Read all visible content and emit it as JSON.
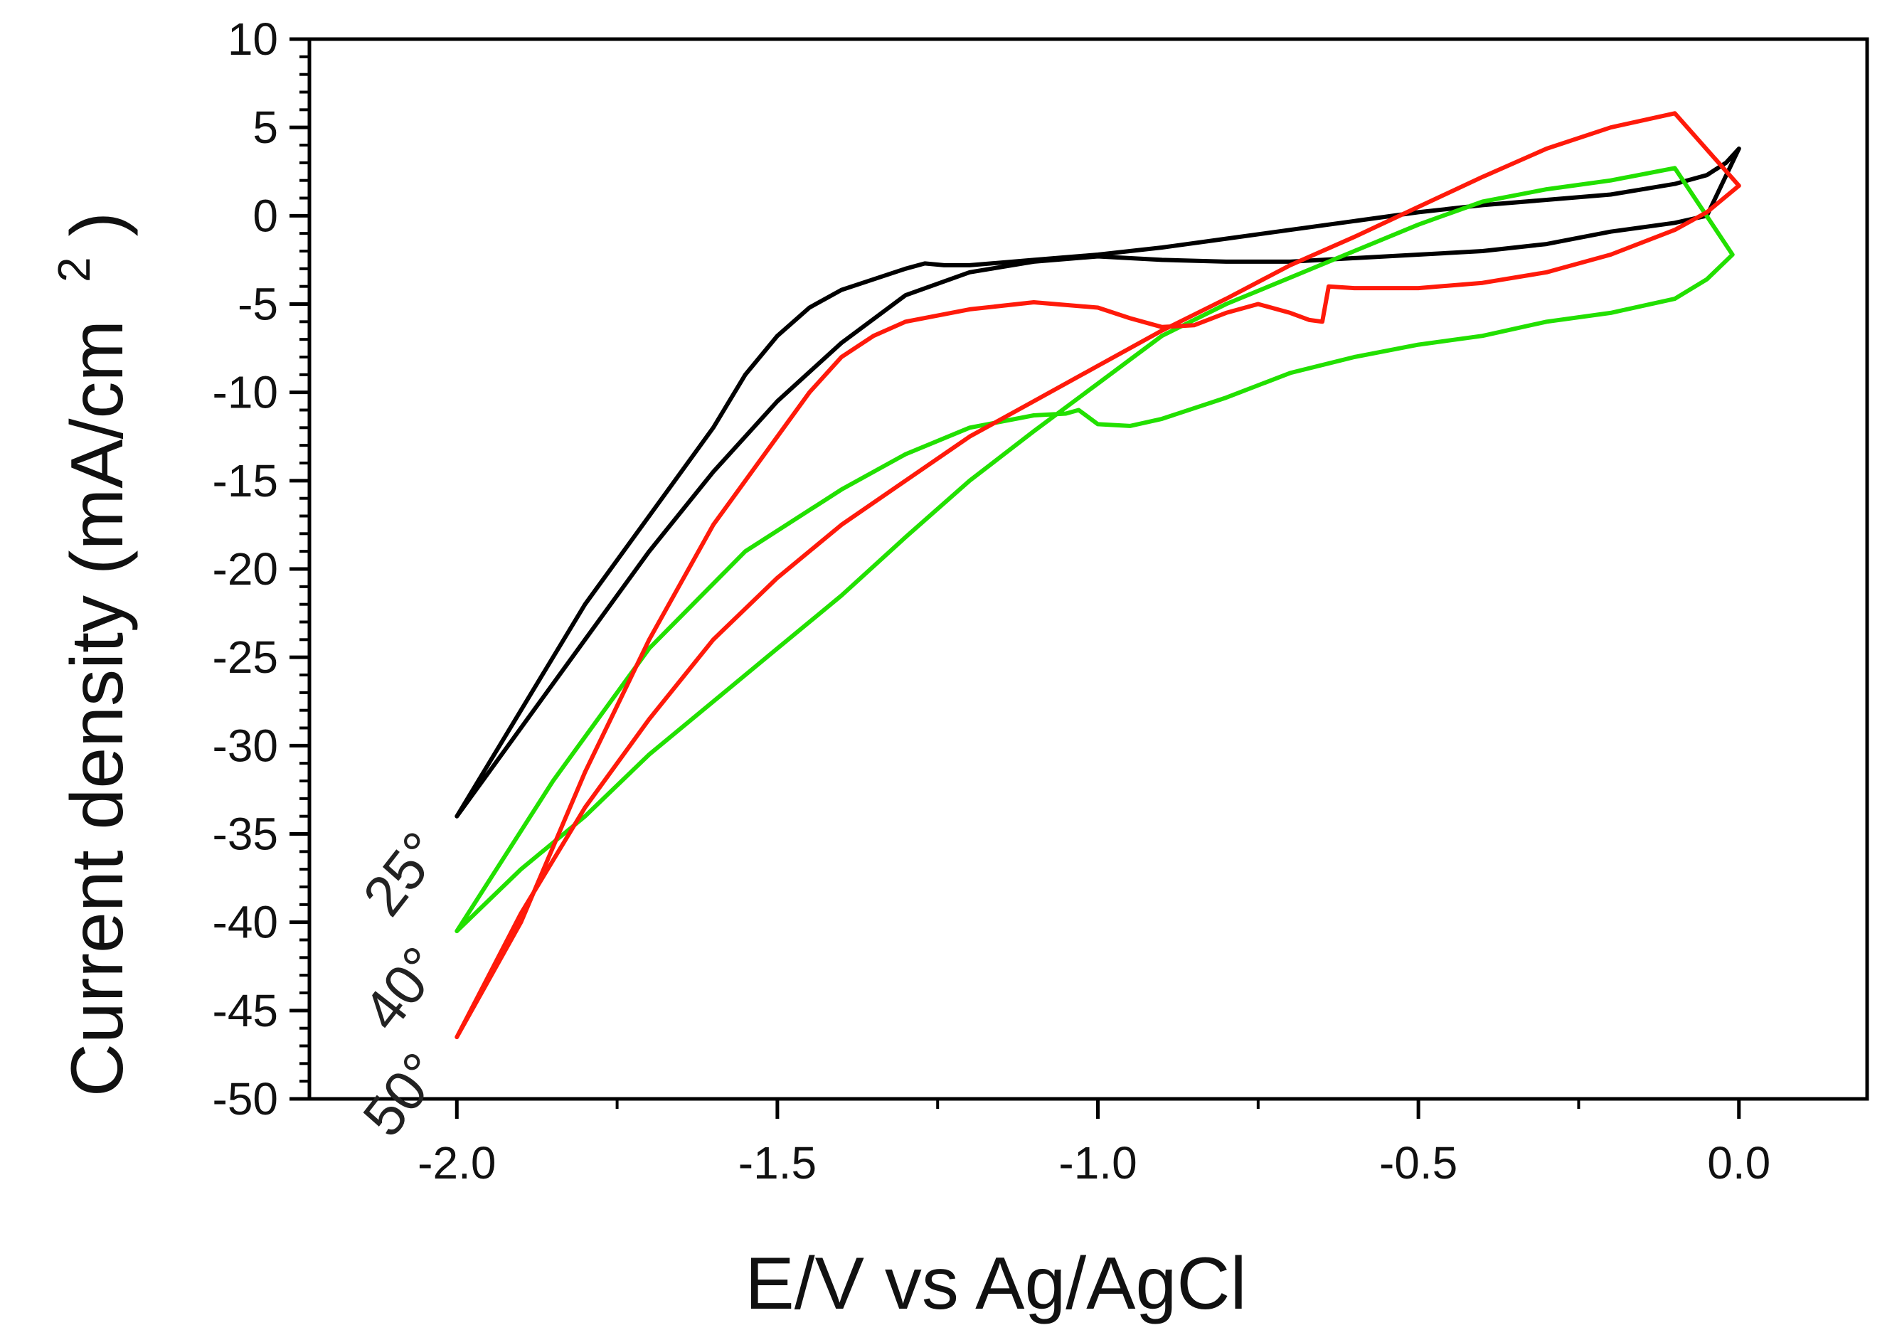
{
  "chart_data": {
    "type": "line",
    "title": "",
    "xlabel": "E/V vs Ag/AgCl",
    "ylabel": "Current density (mA/cm",
    "ylabel_superscript": "2",
    "ylabel_close": ")",
    "xlim": [
      -2.23,
      0.2
    ],
    "ylim": [
      -50,
      10
    ],
    "xticks": [
      -2.0,
      -1.5,
      -1.0,
      -0.5,
      0.0
    ],
    "xtick_labels": [
      "-2.0",
      "-1.5",
      "-1.0",
      "-0.5",
      "0.0"
    ],
    "yticks": [
      10,
      5,
      0,
      -5,
      -10,
      -15,
      -20,
      -25,
      -30,
      -35,
      -40,
      -45,
      -50
    ],
    "ytick_labels": [
      "10",
      "5",
      "0",
      "-5",
      "-10",
      "-15",
      "-20",
      "-25",
      "-30",
      "-35",
      "-40",
      "-45",
      "-50"
    ],
    "grid": false,
    "series": [
      {
        "name": "25°",
        "label": "25°",
        "color": "#000000",
        "x": [
          -2.0,
          -1.9,
          -1.8,
          -1.7,
          -1.6,
          -1.55,
          -1.5,
          -1.45,
          -1.4,
          -1.35,
          -1.3,
          -1.27,
          -1.24,
          -1.2,
          -1.1,
          -1.0,
          -0.9,
          -0.8,
          -0.7,
          -0.6,
          -0.5,
          -0.4,
          -0.3,
          -0.2,
          -0.15,
          -0.1,
          -0.05,
          -0.02,
          0.0,
          -0.05,
          -0.1,
          -0.2,
          -0.3,
          -0.4,
          -0.5,
          -0.6,
          -0.7,
          -0.8,
          -0.9,
          -1.0,
          -1.1,
          -1.2,
          -1.3,
          -1.4,
          -1.5,
          -1.6,
          -1.7,
          -1.8,
          -1.9,
          -2.0
        ],
        "y": [
          -34,
          -28,
          -22,
          -17,
          -12,
          -9,
          -6.8,
          -5.2,
          -4.2,
          -3.6,
          -3.0,
          -2.7,
          -2.8,
          -2.8,
          -2.5,
          -2.2,
          -1.8,
          -1.3,
          -0.8,
          -0.3,
          0.2,
          0.6,
          0.9,
          1.2,
          1.5,
          1.8,
          2.3,
          3.0,
          3.8,
          0.0,
          -0.4,
          -0.9,
          -1.6,
          -2.0,
          -2.2,
          -2.4,
          -2.6,
          -2.6,
          -2.5,
          -2.3,
          -2.6,
          -3.2,
          -4.5,
          -7.2,
          -10.5,
          -14.5,
          -19,
          -24,
          -29,
          -34
        ]
      },
      {
        "name": "40°",
        "label": "40°",
        "color": "#22e000",
        "x": [
          -2.0,
          -1.85,
          -1.7,
          -1.55,
          -1.4,
          -1.3,
          -1.2,
          -1.1,
          -1.05,
          -1.03,
          -1.0,
          -0.95,
          -0.9,
          -0.8,
          -0.7,
          -0.6,
          -0.5,
          -0.4,
          -0.3,
          -0.2,
          -0.1,
          -0.05,
          -0.01,
          -0.1,
          -0.2,
          -0.3,
          -0.4,
          -0.5,
          -0.6,
          -0.7,
          -0.8,
          -0.9,
          -1.0,
          -1.1,
          -1.2,
          -1.3,
          -1.4,
          -1.5,
          -1.6,
          -1.7,
          -1.8,
          -1.9,
          -2.0
        ],
        "y": [
          -40.5,
          -32,
          -24.5,
          -19,
          -15.5,
          -13.5,
          -12,
          -11.3,
          -11.2,
          -11.0,
          -11.8,
          -11.9,
          -11.5,
          -10.3,
          -8.9,
          -8,
          -7.3,
          -6.8,
          -6.0,
          -5.5,
          -4.7,
          -3.6,
          -2.2,
          2.7,
          2.0,
          1.5,
          0.8,
          -0.5,
          -2,
          -3.5,
          -5,
          -6.8,
          -9.5,
          -12.2,
          -15,
          -18.2,
          -21.5,
          -24.5,
          -27.5,
          -30.5,
          -34,
          -37,
          -40.5
        ]
      },
      {
        "name": "50°",
        "label": "50°",
        "color": "#ff1a0a",
        "x": [
          -2.0,
          -1.9,
          -1.8,
          -1.7,
          -1.6,
          -1.5,
          -1.45,
          -1.4,
          -1.35,
          -1.3,
          -1.2,
          -1.1,
          -1.0,
          -0.95,
          -0.9,
          -0.85,
          -0.8,
          -0.75,
          -0.7,
          -0.67,
          -0.65,
          -0.64,
          -0.6,
          -0.5,
          -0.4,
          -0.3,
          -0.2,
          -0.1,
          -0.05,
          0.0,
          -0.1,
          -0.2,
          -0.3,
          -0.4,
          -0.5,
          -0.6,
          -0.7,
          -0.8,
          -0.9,
          -1.0,
          -1.1,
          -1.2,
          -1.3,
          -1.4,
          -1.5,
          -1.6,
          -1.7,
          -1.8,
          -1.9,
          -2.0
        ],
        "y": [
          -46.5,
          -40,
          -31.5,
          -24,
          -17.5,
          -12.5,
          -10,
          -8,
          -6.8,
          -6,
          -5.3,
          -4.9,
          -5.2,
          -5.8,
          -6.3,
          -6.2,
          -5.5,
          -5,
          -5.5,
          -5.9,
          -6.0,
          -4.0,
          -4.1,
          -4.1,
          -3.8,
          -3.2,
          -2.2,
          -0.8,
          0.2,
          1.7,
          5.8,
          5,
          3.8,
          2.2,
          0.5,
          -1.2,
          -2.8,
          -4.7,
          -6.5,
          -8.5,
          -10.5,
          -12.5,
          -15,
          -17.5,
          -20.5,
          -24,
          -28.5,
          -33.5,
          -39.5,
          -46.5
        ]
      }
    ]
  }
}
